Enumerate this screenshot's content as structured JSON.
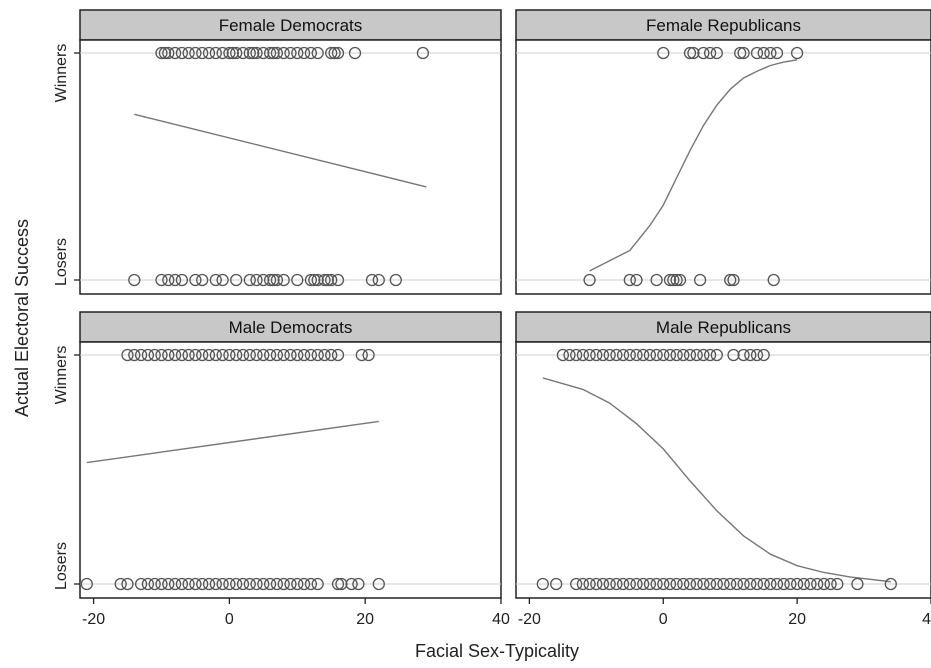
{
  "chart_data": {
    "type": "scatter",
    "xlabel": "Facial Sex-Typicality",
    "ylabel": "Actual Electoral Success",
    "y_categories": [
      "Losers",
      "Winners"
    ],
    "xticks": [
      -20,
      0,
      20,
      40
    ],
    "xlim": [
      -22,
      40
    ],
    "ylim": [
      -0.05,
      1.05
    ],
    "grid": false,
    "panels": [
      {
        "title": "Female Democrats",
        "winners_x": [
          -10,
          -9.5,
          -9,
          -8,
          -7,
          -6,
          -5,
          -4,
          -3,
          -2,
          -1,
          0,
          0.5,
          1,
          2,
          3,
          3.5,
          4,
          5,
          6,
          6.5,
          7,
          8,
          9,
          10,
          11,
          12,
          13,
          15,
          15.5,
          16,
          18.5,
          28.5
        ],
        "losers_x": [
          -14,
          -10,
          -9,
          -8,
          -7,
          -5,
          -4,
          -2,
          -1,
          1,
          3,
          4,
          5,
          6,
          6.5,
          7,
          8,
          10,
          12,
          12.5,
          13,
          14,
          14.5,
          15,
          16,
          21,
          22,
          24.5
        ],
        "fit_x": [
          -14,
          29
        ],
        "fit_y": [
          0.73,
          0.41
        ]
      },
      {
        "title": "Female Republicans",
        "winners_x": [
          0,
          4,
          4.5,
          6,
          7,
          8,
          11.5,
          12,
          14,
          15,
          16,
          17,
          20
        ],
        "losers_x": [
          -11,
          -5,
          -4,
          -1,
          1,
          1.5,
          2,
          2.5,
          5.5,
          10,
          10.5,
          16.5
        ],
        "fit_x": [
          -11,
          -5,
          -2,
          0,
          2,
          4,
          6,
          8,
          10,
          12,
          14,
          16,
          18,
          20
        ],
        "fit_y": [
          0.04,
          0.13,
          0.24,
          0.33,
          0.45,
          0.57,
          0.68,
          0.77,
          0.84,
          0.89,
          0.92,
          0.945,
          0.96,
          0.97
        ]
      },
      {
        "title": "Male Democrats",
        "winners_x": [
          -15,
          -14,
          -13,
          -12,
          -11,
          -10,
          -9,
          -8,
          -7,
          -6,
          -5,
          -4,
          -3,
          -2,
          -1,
          0,
          1,
          2,
          3,
          4,
          5,
          6,
          7,
          8,
          9,
          10,
          11,
          12,
          13,
          14,
          15,
          16,
          19.5,
          20.5
        ],
        "losers_x": [
          -21,
          -16,
          -15,
          -13,
          -12,
          -11,
          -10,
          -9,
          -8,
          -7,
          -6,
          -5,
          -4,
          -3,
          -2,
          -1,
          0,
          1,
          2,
          3,
          4,
          5,
          6,
          7,
          8,
          9,
          10,
          11,
          12,
          13,
          16,
          16.5,
          18,
          19,
          22
        ],
        "fit_x": [
          -21,
          22
        ],
        "fit_y": [
          0.53,
          0.71
        ]
      },
      {
        "title": "Male Republicans",
        "winners_x": [
          -15,
          -14,
          -13,
          -12,
          -11,
          -10,
          -9,
          -8,
          -7,
          -6,
          -5,
          -4,
          -3,
          -2,
          -1,
          0,
          1,
          2,
          3,
          4,
          5,
          6,
          7,
          8,
          10.5,
          12,
          13,
          14,
          15
        ],
        "losers_x": [
          -18,
          -16,
          -13,
          -12,
          -11,
          -10,
          -9,
          -8,
          -7,
          -6,
          -5,
          -4,
          -3,
          -2,
          -1,
          0,
          1,
          2,
          3,
          4,
          5,
          6,
          7,
          8,
          9,
          10,
          11,
          12,
          13,
          14,
          15,
          16,
          17,
          18,
          19,
          20,
          21,
          22,
          23,
          24,
          25,
          26,
          29,
          34
        ],
        "fit_x": [
          -18,
          -12,
          -8,
          -4,
          0,
          4,
          8,
          12,
          16,
          20,
          24,
          28,
          34
        ],
        "fit_y": [
          0.9,
          0.85,
          0.79,
          0.7,
          0.59,
          0.45,
          0.32,
          0.21,
          0.13,
          0.08,
          0.05,
          0.03,
          0.01
        ]
      }
    ]
  }
}
